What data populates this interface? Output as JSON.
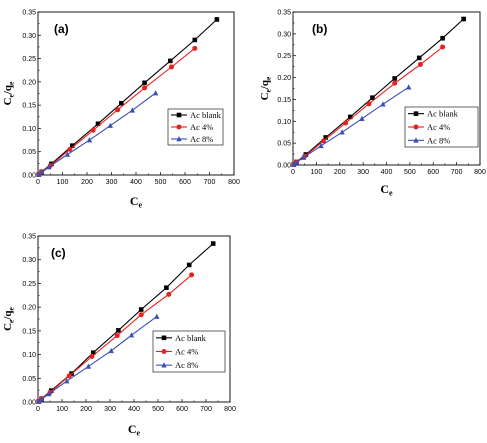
{
  "colors": {
    "black": "#000000",
    "red": "#e8201e",
    "blue": "#3b4fb5"
  },
  "chart_data": [
    {
      "type": "line",
      "panel_label": "(a)",
      "xlabel": "C",
      "xlabel_sub": "e",
      "ylabel": "C",
      "ylabel_sub1": "e",
      "ylabel_mid": "/q",
      "ylabel_sub2": "e",
      "xlim": [
        0,
        800
      ],
      "ylim": [
        0.0,
        0.35
      ],
      "x_ticks": [
        "0",
        "100",
        "200",
        "300",
        "400",
        "500",
        "600",
        "700",
        "800"
      ],
      "y_ticks": [
        "0.00",
        "0.05",
        "0.10",
        "0.15",
        "0.20",
        "0.25",
        "0.30",
        "0.35"
      ],
      "legend_position": "lower-right",
      "series": [
        {
          "name": "Ac blank",
          "color": "#000000",
          "marker": "square",
          "x": [
            3,
            15,
            55,
            140,
            245,
            340,
            435,
            540,
            640,
            730
          ],
          "y": [
            0.001,
            0.007,
            0.024,
            0.063,
            0.11,
            0.154,
            0.198,
            0.245,
            0.29,
            0.334
          ]
        },
        {
          "name": "Ac 4%",
          "color": "#e8201e",
          "marker": "circle",
          "x": [
            3,
            15,
            50,
            130,
            225,
            325,
            435,
            545,
            640
          ],
          "y": [
            0.001,
            0.007,
            0.02,
            0.055,
            0.096,
            0.14,
            0.187,
            0.232,
            0.272
          ]
        },
        {
          "name": "Ac 8%",
          "color": "#3b4fb5",
          "marker": "triangle",
          "x": [
            3,
            15,
            45,
            120,
            210,
            295,
            385,
            480
          ],
          "y": [
            0.001,
            0.006,
            0.017,
            0.044,
            0.075,
            0.106,
            0.139,
            0.176
          ]
        }
      ]
    },
    {
      "type": "line",
      "panel_label": "(b)",
      "xlabel": "C",
      "xlabel_sub": "e",
      "ylabel": "C",
      "ylabel_sub1": "e",
      "ylabel_mid": "/q",
      "ylabel_sub2": "e",
      "xlim": [
        0,
        800
      ],
      "ylim": [
        0.0,
        0.35
      ],
      "x_ticks": [
        "0",
        "100",
        "200",
        "300",
        "400",
        "500",
        "600",
        "700",
        "800"
      ],
      "y_ticks": [
        "0.00",
        "0.05",
        "0.10",
        "0.15",
        "0.20",
        "0.25",
        "0.30",
        "0.35"
      ],
      "legend_position": "lower-right",
      "series": [
        {
          "name": "Ac blank",
          "color": "#000000",
          "marker": "square",
          "x": [
            3,
            15,
            55,
            140,
            245,
            340,
            435,
            540,
            640,
            730
          ],
          "y": [
            0.001,
            0.007,
            0.024,
            0.063,
            0.11,
            0.154,
            0.198,
            0.245,
            0.29,
            0.334
          ]
        },
        {
          "name": "Ac 4%",
          "color": "#e8201e",
          "marker": "circle",
          "x": [
            3,
            15,
            50,
            130,
            225,
            325,
            435,
            545,
            640
          ],
          "y": [
            0.001,
            0.007,
            0.02,
            0.055,
            0.096,
            0.14,
            0.187,
            0.23,
            0.27
          ]
        },
        {
          "name": "Ac 8%",
          "color": "#3b4fb5",
          "marker": "triangle",
          "x": [
            3,
            15,
            45,
            120,
            210,
            295,
            385,
            495
          ],
          "y": [
            0.001,
            0.006,
            0.017,
            0.044,
            0.075,
            0.106,
            0.139,
            0.178
          ]
        }
      ]
    },
    {
      "type": "line",
      "panel_label": "(c)",
      "xlabel": "C",
      "xlabel_sub": "e",
      "ylabel": "C",
      "ylabel_sub1": "e",
      "ylabel_mid": "/q",
      "ylabel_sub2": "e",
      "xlim": [
        0,
        800
      ],
      "ylim": [
        0.0,
        0.35
      ],
      "x_ticks": [
        "0",
        "100",
        "200",
        "300",
        "400",
        "500",
        "600",
        "700",
        "800"
      ],
      "y_ticks": [
        "0.00",
        "0.05",
        "0.10",
        "0.15",
        "0.20",
        "0.25",
        "0.30",
        "0.35"
      ],
      "legend_position": "lower-right",
      "series": [
        {
          "name": "Ac blank",
          "color": "#000000",
          "marker": "square",
          "x": [
            3,
            15,
            55,
            140,
            230,
            335,
            430,
            535,
            630,
            730
          ],
          "y": [
            0.001,
            0.007,
            0.024,
            0.06,
            0.104,
            0.151,
            0.195,
            0.241,
            0.289,
            0.334
          ]
        },
        {
          "name": "Ac 4%",
          "color": "#e8201e",
          "marker": "circle",
          "x": [
            3,
            15,
            50,
            130,
            225,
            330,
            430,
            545,
            640
          ],
          "y": [
            0.001,
            0.007,
            0.02,
            0.055,
            0.096,
            0.14,
            0.184,
            0.227,
            0.268
          ]
        },
        {
          "name": "Ac 8%",
          "color": "#3b4fb5",
          "marker": "triangle",
          "x": [
            3,
            15,
            45,
            120,
            210,
            305,
            390,
            495
          ],
          "y": [
            0.001,
            0.006,
            0.017,
            0.044,
            0.075,
            0.108,
            0.141,
            0.18
          ]
        }
      ]
    }
  ]
}
